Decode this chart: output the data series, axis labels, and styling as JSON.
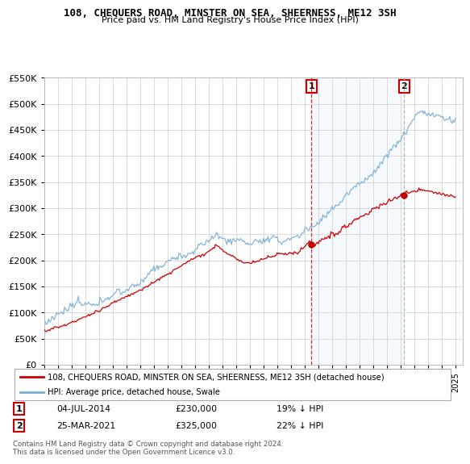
{
  "title": "108, CHEQUERS ROAD, MINSTER ON SEA, SHEERNESS, ME12 3SH",
  "subtitle": "Price paid vs. HM Land Registry's House Price Index (HPI)",
  "legend_line1": "108, CHEQUERS ROAD, MINSTER ON SEA, SHEERNESS, ME12 3SH (detached house)",
  "legend_line2": "HPI: Average price, detached house, Swale",
  "annotation1_label": "1",
  "annotation1_date": "04-JUL-2014",
  "annotation1_price": "£230,000",
  "annotation1_hpi": "19% ↓ HPI",
  "annotation1_year": 2014.5,
  "annotation1_value": 230000,
  "annotation2_label": "2",
  "annotation2_date": "25-MAR-2021",
  "annotation2_price": "£325,000",
  "annotation2_hpi": "22% ↓ HPI",
  "annotation2_year": 2021.25,
  "annotation2_value": 325000,
  "price_color": "#cc0000",
  "hpi_color": "#7aadd4",
  "annotation1_vline_color": "#cc0000",
  "annotation2_vline_color": "#aaaaaa",
  "annotation_box_color": "#cc0000",
  "shade_color": "#ddeeff",
  "ylim": [
    0,
    550000
  ],
  "yticks": [
    0,
    50000,
    100000,
    150000,
    200000,
    250000,
    300000,
    350000,
    400000,
    450000,
    500000,
    550000
  ],
  "xlim_start": 1995,
  "xlim_end": 2025.5,
  "footer": "Contains HM Land Registry data © Crown copyright and database right 2024.\nThis data is licensed under the Open Government Licence v3.0.",
  "background_color": "#ffffff",
  "grid_color": "#cccccc",
  "title_fontsize": 9,
  "subtitle_fontsize": 8
}
